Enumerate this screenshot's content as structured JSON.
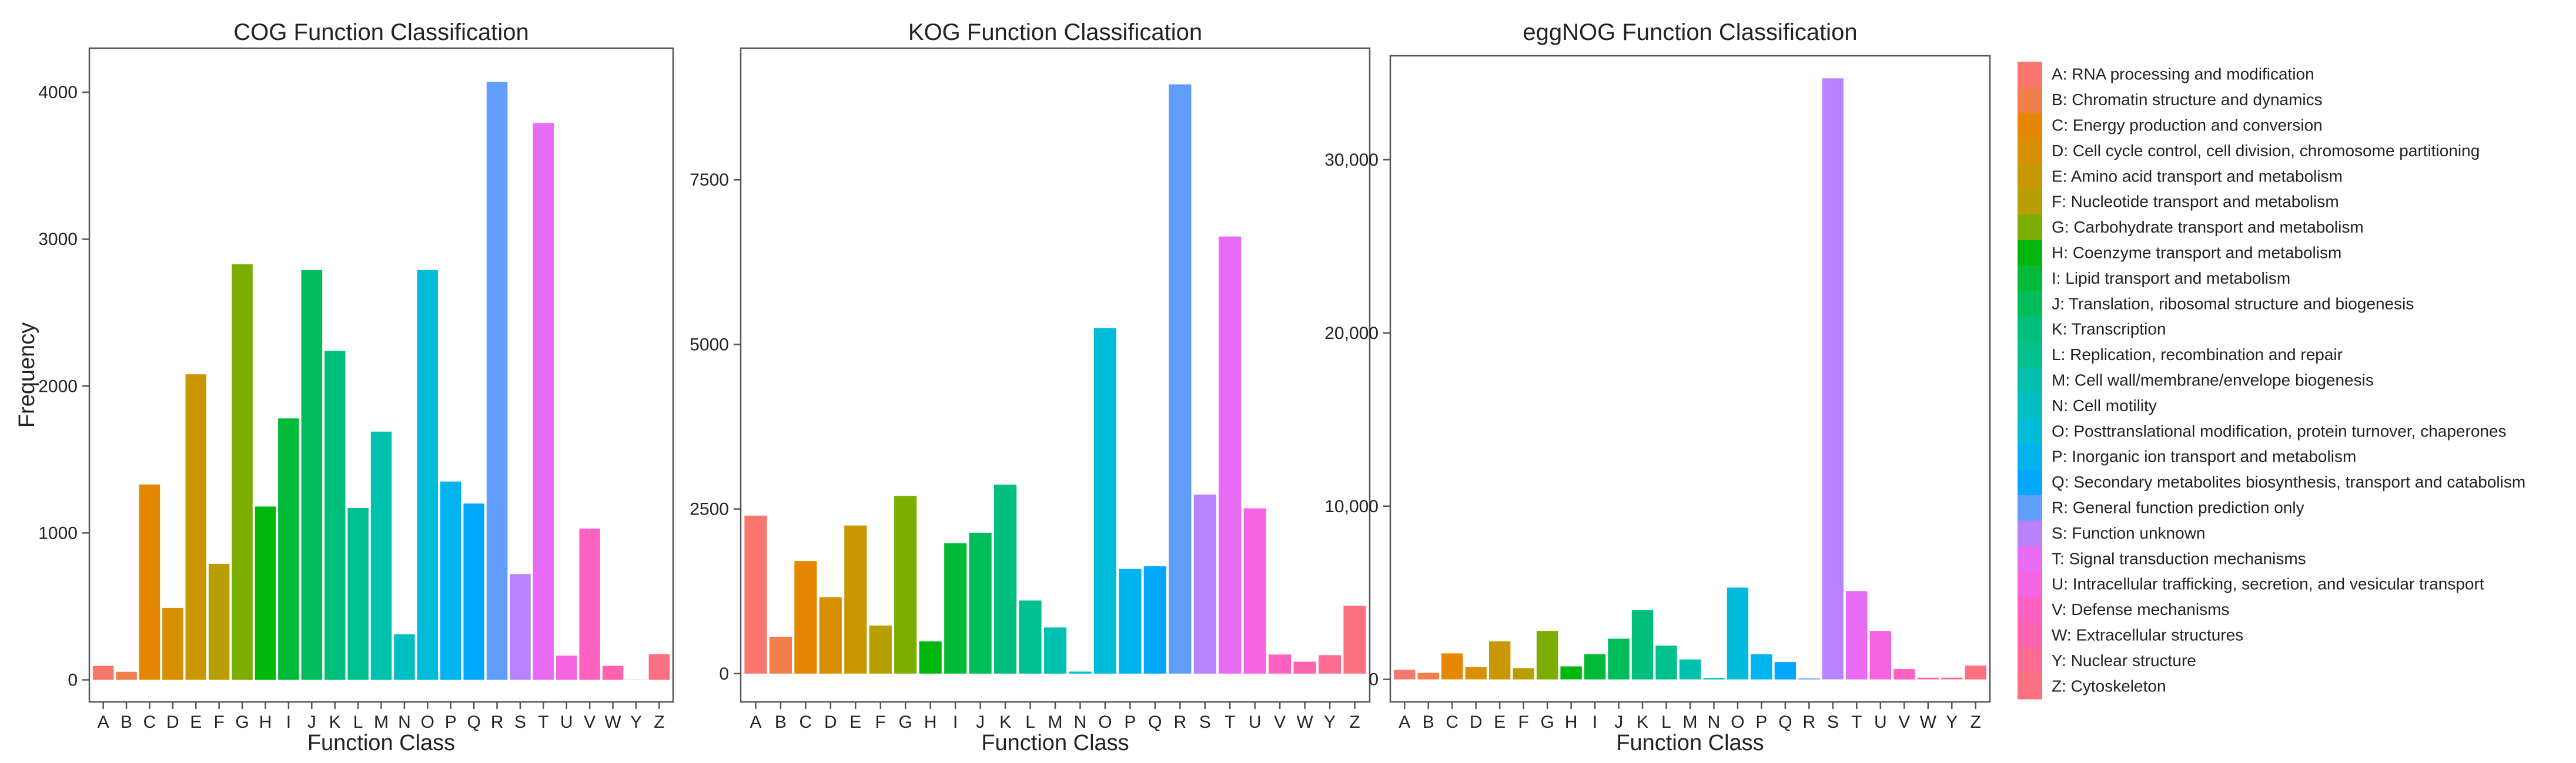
{
  "chart_data": [
    {
      "type": "bar",
      "title": "COG Function Classification",
      "xlabel": "Function Class",
      "ylabel": "Frequency",
      "ylim": [
        -150,
        4300
      ],
      "yticks": [
        0,
        1000,
        2000,
        3000,
        4000
      ],
      "ytick_labels": [
        "0",
        "1000",
        "2000",
        "3000",
        "4000"
      ],
      "categories": [
        "A",
        "B",
        "C",
        "D",
        "E",
        "F",
        "G",
        "H",
        "I",
        "J",
        "K",
        "L",
        "M",
        "N",
        "O",
        "P",
        "Q",
        "R",
        "S",
        "T",
        "U",
        "V",
        "W",
        "Y",
        "Z"
      ],
      "values": [
        95,
        55,
        1330,
        490,
        2080,
        790,
        2830,
        1180,
        1780,
        2790,
        2240,
        1170,
        1690,
        310,
        2790,
        1350,
        1200,
        4070,
        720,
        3790,
        165,
        1030,
        95,
        0,
        175
      ]
    },
    {
      "type": "bar",
      "title": "KOG Function Classification",
      "xlabel": "Function Class",
      "ylabel": "",
      "ylim": [
        -430,
        9500
      ],
      "yticks": [
        0,
        2500,
        5000,
        7500
      ],
      "ytick_labels": [
        "0",
        "2500",
        "5000",
        "7500"
      ],
      "categories": [
        "A",
        "B",
        "C",
        "D",
        "E",
        "F",
        "G",
        "H",
        "I",
        "J",
        "K",
        "L",
        "M",
        "N",
        "O",
        "P",
        "Q",
        "R",
        "S",
        "T",
        "U",
        "V",
        "W",
        "Y",
        "Z"
      ],
      "values": [
        2400,
        560,
        1710,
        1160,
        2250,
        730,
        2700,
        490,
        1980,
        2140,
        2870,
        1110,
        700,
        30,
        5250,
        1590,
        1630,
        8950,
        2720,
        6640,
        2510,
        290,
        180,
        280,
        1030
      ]
    },
    {
      "type": "bar",
      "title": "eggNOG Function Classification",
      "xlabel": "Function Class",
      "ylabel": "",
      "ylim": [
        -1300,
        36000
      ],
      "yticks": [
        0,
        10000,
        20000,
        30000
      ],
      "ytick_labels": [
        "0",
        "10,000",
        "20,000",
        "30,000"
      ],
      "categories": [
        "A",
        "B",
        "C",
        "D",
        "E",
        "F",
        "G",
        "H",
        "I",
        "J",
        "K",
        "L",
        "M",
        "N",
        "O",
        "P",
        "Q",
        "R",
        "S",
        "T",
        "U",
        "V",
        "W",
        "Y",
        "Z"
      ],
      "values": [
        550,
        380,
        1500,
        700,
        2200,
        650,
        2800,
        750,
        1450,
        2350,
        4000,
        1950,
        1150,
        80,
        5300,
        1450,
        1000,
        60,
        34700,
        5100,
        2800,
        600,
        100,
        100,
        800
      ]
    }
  ],
  "legend": {
    "items": [
      {
        "key": "A",
        "label": "A: RNA processing and modification",
        "color": "#F8766D"
      },
      {
        "key": "B",
        "label": "B: Chromatin structure and dynamics",
        "color": "#F07F4B"
      },
      {
        "key": "C",
        "label": "C: Energy production and conversion",
        "color": "#E58700"
      },
      {
        "key": "D",
        "label": "D: Cell cycle control, cell division, chromosome partitioning",
        "color": "#D89000"
      },
      {
        "key": "E",
        "label": "E: Amino acid transport and metabolism",
        "color": "#C99800"
      },
      {
        "key": "F",
        "label": "F: Nucleotide transport and metabolism",
        "color": "#B79F00"
      },
      {
        "key": "G",
        "label": "G: Carbohydrate transport and metabolism",
        "color": "#7CAE00"
      },
      {
        "key": "H",
        "label": "H: Coenzyme transport and metabolism",
        "color": "#00B70C"
      },
      {
        "key": "I",
        "label": "I: Lipid transport and metabolism",
        "color": "#00BA38"
      },
      {
        "key": "J",
        "label": "J: Translation, ribosomal structure and biogenesis",
        "color": "#00BD5C"
      },
      {
        "key": "K",
        "label": "K: Transcription",
        "color": "#00BF7D"
      },
      {
        "key": "L",
        "label": "L: Replication, recombination and repair",
        "color": "#00C08E"
      },
      {
        "key": "M",
        "label": "M: Cell wall/membrane/envelope biogenesis",
        "color": "#00C0AF"
      },
      {
        "key": "N",
        "label": "N: Cell motility",
        "color": "#00BFC4"
      },
      {
        "key": "O",
        "label": "O: Posttranslational modification, protein turnover, chaperones",
        "color": "#00BCD8"
      },
      {
        "key": "P",
        "label": "P: Inorganic ion transport and metabolism",
        "color": "#00B4EF"
      },
      {
        "key": "Q",
        "label": "Q: Secondary metabolites biosynthesis, transport and catabolism",
        "color": "#00A9FF"
      },
      {
        "key": "R",
        "label": "R: General function prediction only",
        "color": "#619CFF"
      },
      {
        "key": "S",
        "label": "S: Function unknown",
        "color": "#B983FF"
      },
      {
        "key": "T",
        "label": "T: Signal transduction mechanisms",
        "color": "#E76BF3"
      },
      {
        "key": "U",
        "label": "U: Intracellular trafficking, secretion, and vesicular transport",
        "color": "#F564E3"
      },
      {
        "key": "V",
        "label": "V: Defense mechanisms",
        "color": "#FF61C3"
      },
      {
        "key": "W",
        "label": "W: Extracellular structures",
        "color": "#FF62AE"
      },
      {
        "key": "Y",
        "label": "Y: Nuclear structure",
        "color": "#FF6C91"
      },
      {
        "key": "Z",
        "label": "Z: Cytoskeleton",
        "color": "#FC717F"
      }
    ]
  }
}
